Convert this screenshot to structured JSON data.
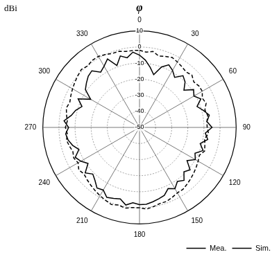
{
  "chart_data": {
    "type": "radar",
    "title": "φ",
    "ylabel": "dBi",
    "categories": [
      0,
      null,
      null,
      null,
      null,
      null,
      30,
      null,
      null,
      null,
      null,
      null,
      60,
      null,
      null,
      null,
      null,
      null,
      90,
      null,
      null,
      null,
      null,
      null,
      120,
      null,
      null,
      null,
      null,
      null,
      150,
      null,
      null,
      null,
      null,
      null,
      180,
      null,
      null,
      null,
      null,
      null,
      210,
      null,
      null,
      null,
      null,
      null,
      240,
      null,
      null,
      null,
      null,
      null,
      270,
      null,
      null,
      null,
      null,
      null,
      300,
      null,
      null,
      null,
      null,
      null,
      330,
      null,
      null,
      null,
      null,
      null
    ],
    "series": [
      {
        "name": "Mea.",
        "color": "#000000",
        "line_style": "solid",
        "values": [
          -5,
          -8,
          -12,
          -16,
          -10,
          -7,
          -9,
          -12,
          -8,
          -10,
          -14,
          -9,
          -11,
          -8,
          -12,
          -9,
          -6,
          -8,
          -5,
          -9,
          -7,
          -11,
          -8,
          -12,
          -10,
          -14,
          -9,
          -11,
          -7,
          -9,
          -6,
          -8,
          -5,
          -4,
          -3,
          -2,
          -2,
          -3,
          -1,
          -4,
          -3,
          -2,
          -5,
          -4,
          -7,
          -9,
          -6,
          -11,
          -8,
          -6,
          -10,
          -7,
          -5,
          -4,
          -6,
          -3,
          -7,
          -9,
          -12,
          -8,
          -15,
          -9,
          -7,
          -5,
          -4,
          -8,
          -6,
          -3,
          -9,
          -4,
          -6,
          -3
        ]
      },
      {
        "name": "Sim.",
        "color": "#000000",
        "line_style": "dashed",
        "values": [
          -2,
          -3,
          -2,
          -4,
          -3,
          -2,
          -3,
          -4,
          -5,
          -4,
          -6,
          -5,
          -5,
          -7,
          -6,
          -8,
          -7,
          -8,
          -8,
          -7,
          -9,
          -8,
          -7,
          -9,
          -8,
          -7,
          -6,
          -5,
          -4,
          -3,
          -3,
          -2,
          -1,
          -1,
          0,
          1,
          0,
          0,
          1,
          0,
          1,
          0,
          -1,
          -2,
          -3,
          -4,
          -5,
          -4,
          -6,
          -5,
          -6,
          -5,
          -4,
          -5,
          -4,
          -5,
          -4,
          -3,
          -4,
          -3,
          -2,
          -1,
          0,
          1,
          0,
          1,
          1,
          0,
          -1,
          -1,
          -2,
          -2
        ]
      }
    ],
    "ylim": [
      -50,
      10
    ],
    "yticks": [
      -50,
      -40,
      -30,
      -20,
      -10,
      0,
      10
    ],
    "grid": true,
    "legend": "bottom-right"
  }
}
